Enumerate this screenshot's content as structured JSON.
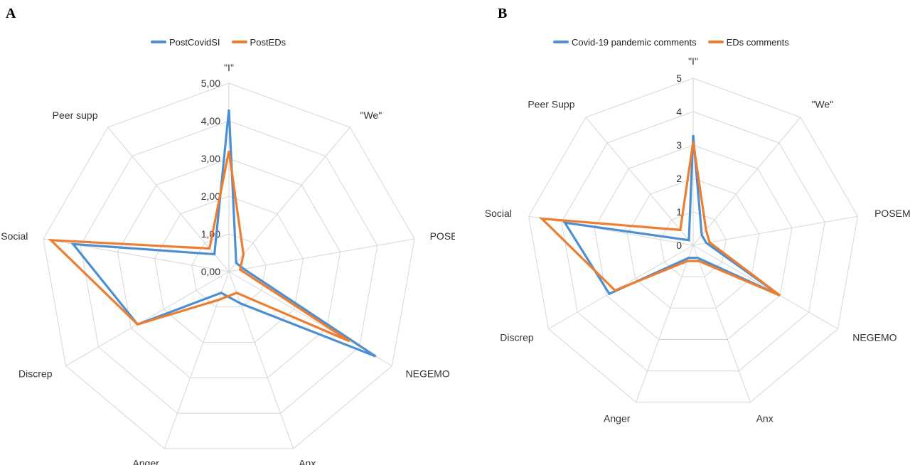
{
  "panels": [
    {
      "letter": "A",
      "chart_data": {
        "type": "radar",
        "axes": [
          "\"I\"",
          "\"We\"",
          "POSEMO",
          "NEGEMO",
          "Anx",
          "Anger",
          "Discrep",
          "Social",
          "Peer supp"
        ],
        "rlim": [
          0,
          5
        ],
        "tick_values": [
          0,
          1,
          2,
          3,
          4,
          5
        ],
        "tick_labels": [
          "0,00",
          "1,00",
          "2,00",
          "3,00",
          "4,00",
          "5,00"
        ],
        "grid": true,
        "legend": "top",
        "series": [
          {
            "name": "PostCovidSI",
            "color": "#4e8fd1",
            "values": [
              4.3,
              0.3,
              0.4,
              4.5,
              0.9,
              0.6,
              2.8,
              4.2,
              0.6
            ]
          },
          {
            "name": "PostEDs",
            "color": "#ed7d31",
            "values": [
              3.2,
              0.6,
              0.3,
              3.7,
              0.6,
              0.8,
              2.8,
              4.8,
              0.8
            ]
          }
        ]
      }
    },
    {
      "letter": "B",
      "chart_data": {
        "type": "radar",
        "axes": [
          "\"I\"",
          "\"We\"",
          "POSEMO",
          "NEGEMO",
          "Anx",
          "Anger",
          "Discrep",
          "Social",
          "Peer Supp"
        ],
        "rlim": [
          0,
          5
        ],
        "tick_values": [
          0,
          1,
          2,
          3,
          4,
          5
        ],
        "tick_labels": [
          "0",
          "1",
          "2",
          "3",
          "4",
          "5"
        ],
        "grid": true,
        "legend": "top",
        "series": [
          {
            "name": "Covid-19 pandemic comments",
            "color": "#4e8fd1",
            "values": [
              3.3,
              0.4,
              0.4,
              3.0,
              0.4,
              0.4,
              2.9,
              3.9,
              0.2
            ]
          },
          {
            "name": "EDs comments",
            "color": "#ed7d31",
            "values": [
              3.1,
              0.6,
              0.5,
              3.0,
              0.5,
              0.5,
              2.7,
              4.6,
              0.6
            ]
          }
        ]
      }
    }
  ]
}
